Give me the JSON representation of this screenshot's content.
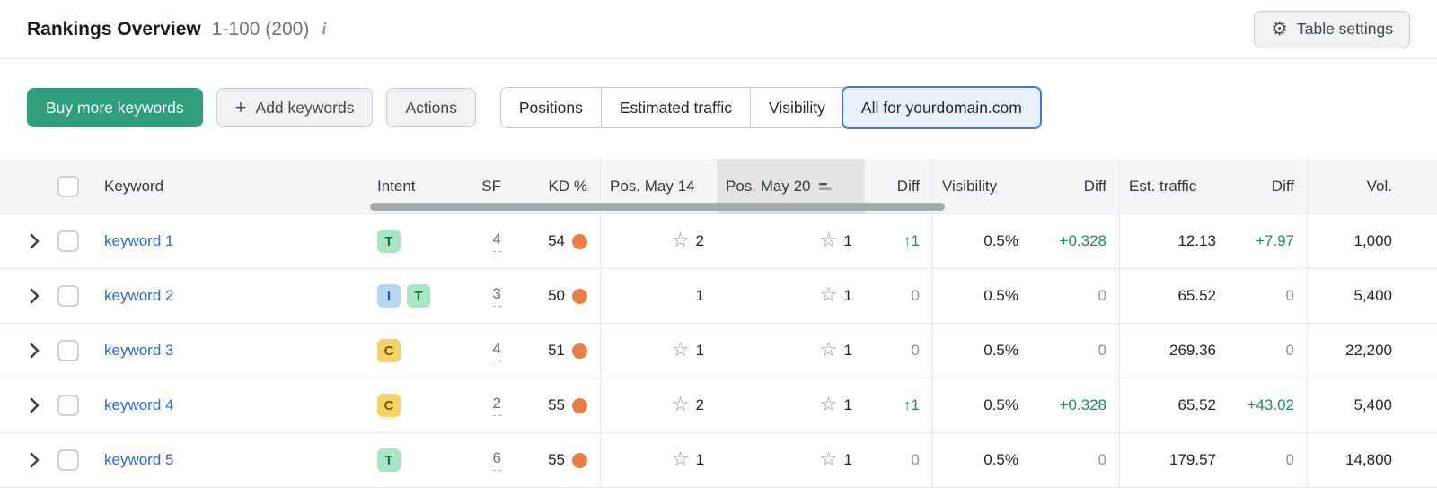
{
  "icons": {
    "info": "i",
    "gear": "⚙",
    "plus": "+",
    "star": "☆",
    "arrow_up": "↑"
  },
  "header": {
    "title": "Rankings Overview",
    "range": "1-100 (200)",
    "table_settings_label": "Table settings"
  },
  "toolbar": {
    "buy_button": "Buy more keywords",
    "add_button": "Add keywords",
    "actions_button": "Actions",
    "tabs": [
      {
        "label": "Positions",
        "selected": false
      },
      {
        "label": "Estimated traffic",
        "selected": false
      },
      {
        "label": "Visibility",
        "selected": false
      },
      {
        "label": "All for yourdomain.com",
        "selected": true
      }
    ]
  },
  "table": {
    "columns": [
      "Keyword",
      "Intent",
      "SF",
      "KD %",
      "Pos. May 14",
      "Pos. May 20",
      "Diff",
      "Visibility",
      "Diff",
      "Est. traffic",
      "Diff",
      "Vol."
    ],
    "sorted_column": "Pos. May 20",
    "rows": [
      {
        "keyword": "keyword 1",
        "intents": [
          "T"
        ],
        "sf": "4",
        "kd": "54",
        "pos_may14": {
          "value": "2",
          "star": true
        },
        "pos_may20": {
          "value": "1",
          "star": true
        },
        "diff_position": {
          "value": "1",
          "direction": "up"
        },
        "visibility": "0.5%",
        "diff_visibility": "+0.328",
        "est_traffic": "12.13",
        "diff_est_traffic": "+7.97",
        "volume": "1,000"
      },
      {
        "keyword": "keyword 2",
        "intents": [
          "I",
          "T"
        ],
        "sf": "3",
        "kd": "50",
        "pos_may14": {
          "value": "1",
          "star": false
        },
        "pos_may20": {
          "value": "1",
          "star": true
        },
        "diff_position": {
          "value": "0",
          "direction": "none"
        },
        "visibility": "0.5%",
        "diff_visibility": "0",
        "est_traffic": "65.52",
        "diff_est_traffic": "0",
        "volume": "5,400"
      },
      {
        "keyword": "keyword 3",
        "intents": [
          "C"
        ],
        "sf": "4",
        "kd": "51",
        "pos_may14": {
          "value": "1",
          "star": true
        },
        "pos_may20": {
          "value": "1",
          "star": true
        },
        "diff_position": {
          "value": "0",
          "direction": "none"
        },
        "visibility": "0.5%",
        "diff_visibility": "0",
        "est_traffic": "269.36",
        "diff_est_traffic": "0",
        "volume": "22,200"
      },
      {
        "keyword": "keyword 4",
        "intents": [
          "C"
        ],
        "sf": "2",
        "kd": "55",
        "pos_may14": {
          "value": "2",
          "star": true
        },
        "pos_may20": {
          "value": "1",
          "star": true
        },
        "diff_position": {
          "value": "1",
          "direction": "up"
        },
        "visibility": "0.5%",
        "diff_visibility": "+0.328",
        "est_traffic": "65.52",
        "diff_est_traffic": "+43.02",
        "volume": "5,400"
      },
      {
        "keyword": "keyword 5",
        "intents": [
          "T"
        ],
        "sf": "6",
        "kd": "55",
        "pos_may14": {
          "value": "1",
          "star": true
        },
        "pos_may20": {
          "value": "1",
          "star": true
        },
        "diff_position": {
          "value": "0",
          "direction": "none"
        },
        "visibility": "0.5%",
        "diff_visibility": "0",
        "est_traffic": "179.57",
        "diff_est_traffic": "0",
        "volume": "14,800"
      }
    ]
  },
  "colors": {
    "primary_green": "#2e9e7c",
    "link_blue": "#2c68dd",
    "positive_green": "#1f8a64",
    "kd_dot_orange": "#ec7d45",
    "selected_tab_border": "#4377de",
    "selected_tab_bg": "#e9f1fc",
    "table_header_bg": "#f4f5f7",
    "sorted_column_bg": "#e3e4ea"
  }
}
